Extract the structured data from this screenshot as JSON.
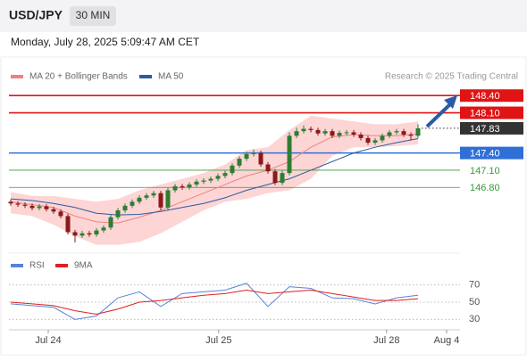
{
  "header": {
    "title": "USD/JPY",
    "timeframe": "30 MIN",
    "date": "Monday, July 28, 2025 5:09:47 AM CET",
    "credit": "Research © 2025 Trading Central"
  },
  "chart_data": [
    {
      "type": "candlestick",
      "xlim": [
        0,
        63
      ],
      "ylim": [
        145.67,
        148.59
      ],
      "xticks": [
        {
          "value": 5.25,
          "label": "Jul 24"
        },
        {
          "value": 29.1,
          "label": "Jul 25"
        },
        {
          "value": 52.6,
          "label": "Jul 28"
        },
        {
          "value": 61,
          "label": "Aug 4"
        }
      ],
      "up_color": "#2e7d32",
      "down_color": "#8b1a1a",
      "candles": {
        "x": [
          0,
          1,
          2,
          3,
          4,
          5,
          6,
          7,
          8,
          9,
          10,
          11,
          12,
          13,
          14,
          15,
          16,
          17,
          18,
          19,
          20,
          21,
          22,
          23,
          24,
          25,
          26,
          27,
          28,
          29,
          30,
          31,
          32,
          33,
          34,
          35,
          36,
          37,
          38,
          39,
          40,
          41,
          42,
          43,
          44,
          45,
          46,
          47,
          48,
          49,
          50,
          51,
          52,
          53,
          54,
          55,
          56,
          57
        ],
        "open": [
          146.55,
          146.52,
          146.5,
          146.48,
          146.44,
          146.47,
          146.42,
          146.38,
          146.3,
          146.02,
          145.96,
          146.0,
          145.98,
          146.05,
          146.1,
          146.28,
          146.4,
          146.48,
          146.55,
          146.62,
          146.66,
          146.7,
          146.45,
          146.75,
          146.82,
          146.8,
          146.85,
          146.9,
          146.92,
          146.95,
          147.0,
          147.05,
          147.18,
          147.3,
          147.38,
          147.4,
          147.2,
          147.08,
          146.88,
          147.05,
          147.7,
          147.78,
          147.82,
          147.8,
          147.74,
          147.78,
          147.7,
          147.75,
          147.76,
          147.72,
          147.66,
          147.58,
          147.62,
          147.7,
          147.76,
          147.78,
          147.72,
          147.7
        ],
        "high": [
          146.59,
          146.56,
          146.54,
          146.52,
          146.51,
          146.51,
          146.46,
          146.42,
          146.34,
          146.06,
          146.04,
          146.04,
          146.09,
          146.14,
          146.32,
          146.44,
          146.52,
          146.59,
          146.66,
          146.7,
          146.74,
          146.74,
          146.79,
          146.86,
          146.86,
          146.89,
          146.94,
          146.96,
          146.99,
          147.04,
          147.09,
          147.22,
          147.34,
          147.42,
          147.46,
          147.44,
          147.24,
          147.12,
          147.09,
          147.76,
          147.84,
          147.88,
          147.86,
          147.84,
          147.82,
          147.82,
          147.79,
          147.8,
          147.8,
          147.76,
          147.7,
          147.66,
          147.74,
          147.8,
          147.82,
          147.82,
          147.76,
          147.9
        ],
        "low": [
          146.48,
          146.46,
          146.44,
          146.4,
          146.4,
          146.38,
          146.34,
          146.26,
          145.98,
          145.84,
          145.92,
          145.94,
          145.94,
          146.01,
          146.06,
          146.24,
          146.36,
          146.44,
          146.51,
          146.58,
          146.62,
          146.4,
          146.41,
          146.71,
          146.76,
          146.76,
          146.81,
          146.86,
          146.88,
          146.91,
          146.96,
          147.01,
          147.14,
          147.26,
          147.34,
          147.16,
          147.04,
          146.84,
          146.84,
          147.01,
          147.66,
          147.74,
          147.76,
          147.7,
          147.7,
          147.66,
          147.66,
          147.71,
          147.68,
          147.62,
          147.54,
          147.54,
          147.58,
          147.66,
          147.72,
          147.68,
          147.62,
          147.66
        ],
        "close": [
          146.52,
          146.5,
          146.48,
          146.44,
          146.47,
          146.42,
          146.38,
          146.3,
          146.02,
          145.96,
          146.0,
          145.98,
          146.05,
          146.1,
          146.28,
          146.4,
          146.48,
          146.55,
          146.62,
          146.66,
          146.7,
          146.45,
          146.75,
          146.82,
          146.8,
          146.85,
          146.9,
          146.92,
          146.95,
          147.0,
          147.05,
          147.18,
          147.3,
          147.38,
          147.4,
          147.2,
          147.08,
          146.88,
          147.05,
          147.7,
          147.78,
          147.82,
          147.8,
          147.74,
          147.78,
          147.7,
          147.75,
          147.76,
          147.72,
          147.66,
          147.58,
          147.62,
          147.7,
          147.76,
          147.78,
          147.72,
          147.7,
          147.83
        ]
      },
      "series": [
        {
          "name": "MA 20 + Bollinger Bands",
          "color": "#f08080",
          "band_color": "#fdd5d5",
          "x": [
            0,
            3,
            6,
            9,
            12,
            15,
            18,
            21,
            24,
            27,
            30,
            33,
            36,
            39,
            42,
            45,
            48,
            51,
            54,
            57
          ],
          "values": [
            146.55,
            146.5,
            146.45,
            146.3,
            146.2,
            146.18,
            146.28,
            146.4,
            146.55,
            146.7,
            146.85,
            147.0,
            147.1,
            147.25,
            147.5,
            147.68,
            147.72,
            147.7,
            147.7,
            147.73
          ],
          "upper": [
            146.72,
            146.65,
            146.65,
            146.6,
            146.55,
            146.6,
            146.75,
            146.85,
            146.95,
            147.05,
            147.2,
            147.45,
            147.5,
            147.8,
            148.05,
            148.0,
            147.95,
            147.9,
            147.9,
            147.95
          ],
          "lower": [
            146.35,
            146.3,
            146.15,
            145.95,
            145.8,
            145.8,
            145.85,
            146.0,
            146.2,
            146.4,
            146.55,
            146.6,
            146.7,
            146.75,
            146.95,
            147.35,
            147.5,
            147.5,
            147.52,
            147.55
          ]
        },
        {
          "name": "MA 50",
          "color": "#2c5aa0",
          "x": [
            0,
            3,
            6,
            9,
            12,
            15,
            18,
            21,
            24,
            27,
            30,
            33,
            36,
            39,
            42,
            45,
            48,
            51,
            54,
            57
          ],
          "values": [
            146.6,
            146.57,
            146.52,
            146.45,
            146.35,
            146.32,
            146.33,
            146.38,
            146.45,
            146.52,
            146.62,
            146.75,
            146.85,
            146.95,
            147.1,
            147.25,
            147.4,
            147.5,
            147.58,
            147.65
          ]
        }
      ],
      "levels": [
        {
          "value": 148.4,
          "label": "148.40",
          "color": "#e01414",
          "boxed": true,
          "line": "solid"
        },
        {
          "value": 148.1,
          "label": "148.10",
          "color": "#e01414",
          "boxed": true,
          "line": "solid"
        },
        {
          "value": 147.83,
          "color": "#333333",
          "boxed": true,
          "line": "dotted"
        },
        {
          "value": 147.4,
          "label": "147.40",
          "color": "#2f6fd6",
          "boxed": true,
          "line": "solid"
        },
        {
          "value": 147.1,
          "label": "147.10",
          "color": "#3a9a3a",
          "boxed": false,
          "line": "solid"
        },
        {
          "value": 146.8,
          "label": "146.80",
          "color": "#3a9a3a",
          "boxed": false,
          "line": "solid"
        }
      ]
    },
    {
      "type": "line",
      "xlim": [
        0,
        63
      ],
      "ylim": [
        20,
        80
      ],
      "yticks": [
        70,
        50,
        30
      ],
      "grid": true,
      "series": [
        {
          "name": "RSI",
          "color": "#5b82d8",
          "x": [
            0,
            3,
            6,
            9,
            12,
            15,
            18,
            21,
            24,
            27,
            30,
            33,
            36,
            39,
            42,
            45,
            48,
            51,
            54,
            57
          ],
          "values": [
            48,
            46,
            44,
            30,
            34,
            55,
            62,
            45,
            60,
            62,
            64,
            72,
            45,
            68,
            66,
            55,
            54,
            48,
            55,
            58
          ]
        },
        {
          "name": "9MA",
          "color": "#e02020",
          "x": [
            0,
            3,
            6,
            9,
            12,
            15,
            18,
            21,
            24,
            27,
            30,
            33,
            36,
            39,
            42,
            45,
            48,
            51,
            54,
            57
          ],
          "values": [
            50,
            48,
            46,
            40,
            36,
            42,
            50,
            52,
            55,
            58,
            60,
            64,
            60,
            62,
            64,
            60,
            56,
            52,
            52,
            54
          ]
        }
      ]
    }
  ]
}
